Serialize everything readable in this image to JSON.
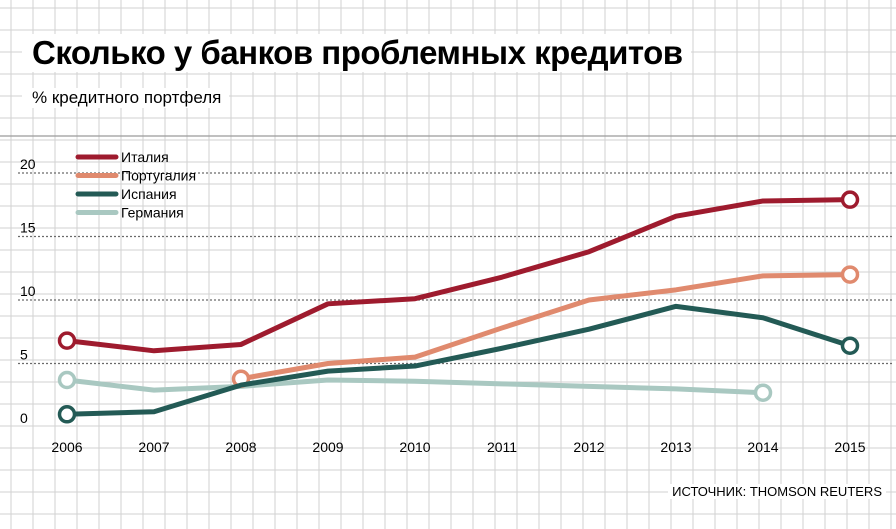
{
  "title": "Сколько у банков проблемных кредитов",
  "subtitle": "% кредитного портфеля",
  "source": "ИСТОЧНИК: THOMSON REUTERS",
  "chart_data": {
    "type": "line",
    "title": "Сколько у банков проблемных кредитов",
    "subtitle": "% кредитного портфеля",
    "xlabel": "",
    "ylabel": "% кредитного портфеля",
    "x": [
      "2006",
      "2007",
      "2008",
      "2009",
      "2010",
      "2011",
      "2012",
      "2013",
      "2014",
      "2015"
    ],
    "yticks": [
      "0",
      "5",
      "10",
      "15",
      "20"
    ],
    "ylim": [
      0,
      20
    ],
    "grid": true,
    "legend_position": "top-left",
    "series": [
      {
        "name": "Италия",
        "color": "#9e1b2e",
        "values": [
          6.8,
          6.0,
          6.5,
          9.7,
          10.1,
          11.8,
          13.8,
          16.6,
          17.8,
          17.9
        ],
        "markers": [
          0,
          9
        ]
      },
      {
        "name": "Португалия",
        "color": "#e08a6e",
        "values": [
          null,
          null,
          3.8,
          5.0,
          5.5,
          7.8,
          10.0,
          10.8,
          11.9,
          12.0
        ],
        "markers": [
          2,
          9
        ]
      },
      {
        "name": "Испания",
        "color": "#235a55",
        "values": [
          1.0,
          1.2,
          3.3,
          4.4,
          4.8,
          6.2,
          7.7,
          9.5,
          8.6,
          6.4
        ],
        "markers": [
          0,
          9
        ]
      },
      {
        "name": "Германия",
        "color": "#a9c8c1",
        "values": [
          3.7,
          2.9,
          3.2,
          3.7,
          3.6,
          3.4,
          3.2,
          3.0,
          2.7,
          null
        ],
        "markers": [
          0,
          8
        ]
      }
    ]
  }
}
